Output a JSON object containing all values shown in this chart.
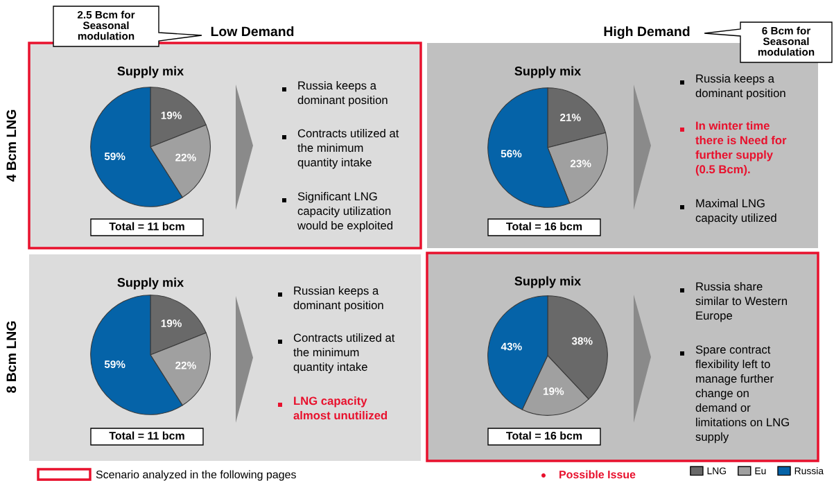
{
  "chart_data": [
    {
      "type": "pie",
      "title": "Supply mix",
      "categories": [
        "LNG",
        "Eu",
        "Russia"
      ],
      "values": [
        19,
        22,
        59
      ],
      "colors": [
        "#696969",
        "#a0a0a0",
        "#0563a8"
      ],
      "value_labels": [
        "19%",
        "22%",
        "59%"
      ],
      "legend": "bottom right",
      "annotations": [
        "Total = 11 bcm",
        "Russia keeps a\ndominant position",
        "Contracts utilized at\nthe minimum\nquantity intake",
        "Significant LNG\ncapacity utilization\nwould be exploited",
        "Low Demand",
        "4 Bcm LNG",
        "2.5 Bcm for\nSeasonal\nmodulation"
      ]
    },
    {
      "type": "pie",
      "title": "Supply mix",
      "categories": [
        null,
        null,
        null
      ],
      "values": [
        21,
        23,
        56
      ],
      "colors": [
        "#696969",
        "#a0a0a0",
        "#0563a8"
      ],
      "value_labels": [
        "21%",
        "23%",
        "56%"
      ],
      "annotations": [
        "Total = 16 bcm",
        "Russia keeps a\ndominant position",
        "In winter time\nthere is Need for\nfurther supply\n(0.5 Bcm).",
        "Maximal LNG\ncapacity utilized",
        "High Demand",
        "6 Bcm for\nSeasonal\nmodulation"
      ]
    },
    {
      "type": "pie",
      "title": "Supply mix",
      "categories": [
        null,
        null,
        null
      ],
      "values": [
        19,
        22,
        59
      ],
      "colors": [
        "#696969",
        "#a0a0a0",
        "#0563a8"
      ],
      "value_labels": [
        "19%",
        "22%",
        "59%"
      ],
      "annotations": [
        "Total = 11 bcm",
        "Russian keeps a\ndominant position",
        "Contracts utilized at\nthe minimum\nquantity intake",
        "LNG capacity\nalmost unutilized",
        "8 Bcm LNG",
        "Scenario analyzed in the following pages"
      ]
    },
    {
      "type": "pie",
      "title": "Supply mix",
      "categories": [
        null,
        null,
        null
      ],
      "values": [
        38,
        19,
        43
      ],
      "colors": [
        "#696969",
        "#a0a0a0",
        "#0563a8"
      ],
      "value_labels": [
        "38%",
        "19%",
        "43%"
      ],
      "annotations": [
        "Total = 16 bcm",
        "Russia share\nsimilar to Western\nEurope",
        "Spare contract\nflexibility left to\nmanage further\nchange on\ndemand or\nlimitations on LNG\nsupply",
        "Possible Issue"
      ]
    }
  ]
}
